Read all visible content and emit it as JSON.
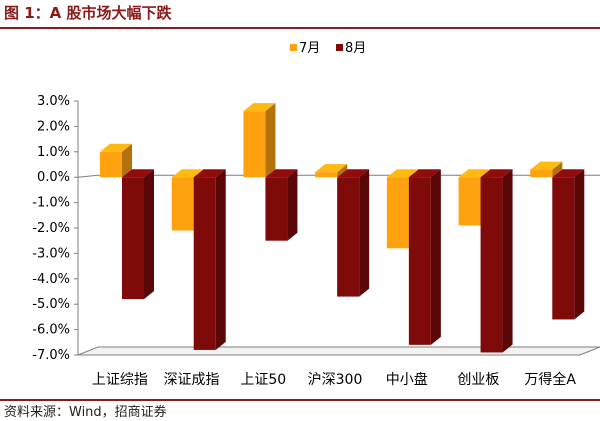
{
  "figure": {
    "title": "图 1：A 股市场大幅下跌",
    "source": "资料来源：Wind，招商证券"
  },
  "chart_data": {
    "type": "bar",
    "categories": [
      "上证综指",
      "深证成指",
      "上证50",
      "沪深300",
      "中小盘",
      "创业板",
      "万得全A"
    ],
    "series": [
      {
        "name": "7月",
        "values": [
          1.0,
          -2.1,
          2.6,
          0.2,
          -2.8,
          -1.9,
          0.3
        ],
        "color": "#ffa20f"
      },
      {
        "name": "8月",
        "values": [
          -4.8,
          -6.8,
          -2.5,
          -4.7,
          -6.6,
          -6.9,
          -5.6
        ],
        "color": "#7f0a0a"
      }
    ],
    "ylim": [
      -7.0,
      3.0
    ],
    "yticks": [
      "3.0%",
      "2.0%",
      "1.0%",
      "0.0%",
      "-1.0%",
      "-2.0%",
      "-3.0%",
      "-4.0%",
      "-5.0%",
      "-6.0%",
      "-7.0%"
    ],
    "legend_position": "top",
    "grid": false,
    "style": "3d-bar"
  }
}
